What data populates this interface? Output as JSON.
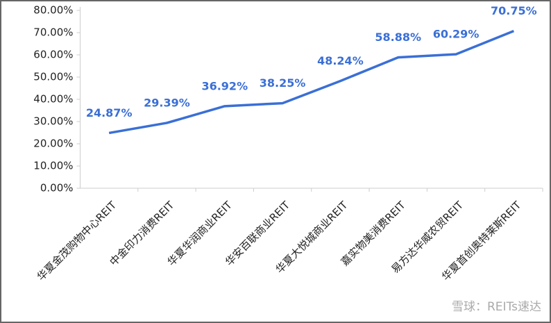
{
  "chart_data": {
    "type": "line",
    "categories": [
      "华夏金茂购物中心REIT",
      "中金印力消费REIT",
      "华夏华润商业REIT",
      "华安百联商业REIT",
      "华夏大悦城商业REIT",
      "嘉实物美消费REIT",
      "易方达华威农贸REIT",
      "华夏首创奥特莱斯REIT"
    ],
    "series": [
      {
        "color": "#3a6fd6",
        "values": [
          24.87,
          29.39,
          36.92,
          38.25,
          48.24,
          58.88,
          60.29,
          70.75
        ],
        "value_labels": [
          "24.87%",
          "29.39%",
          "36.92%",
          "38.25%",
          "48.24%",
          "58.88%",
          "60.29%",
          "70.75%"
        ]
      }
    ],
    "ylim": [
      0,
      80
    ],
    "yticks": [
      {
        "value": 0,
        "label": "0.00%"
      },
      {
        "value": 10,
        "label": "10.00%"
      },
      {
        "value": 20,
        "label": "20.00%"
      },
      {
        "value": 30,
        "label": "30.00%"
      },
      {
        "value": 40,
        "label": "40.00%"
      },
      {
        "value": 50,
        "label": "50.00%"
      },
      {
        "value": 60,
        "label": "60.00%"
      },
      {
        "value": 70,
        "label": "70.00%"
      },
      {
        "value": 80,
        "label": "80.00%"
      }
    ],
    "watermark": "雪球：REITs速达"
  }
}
